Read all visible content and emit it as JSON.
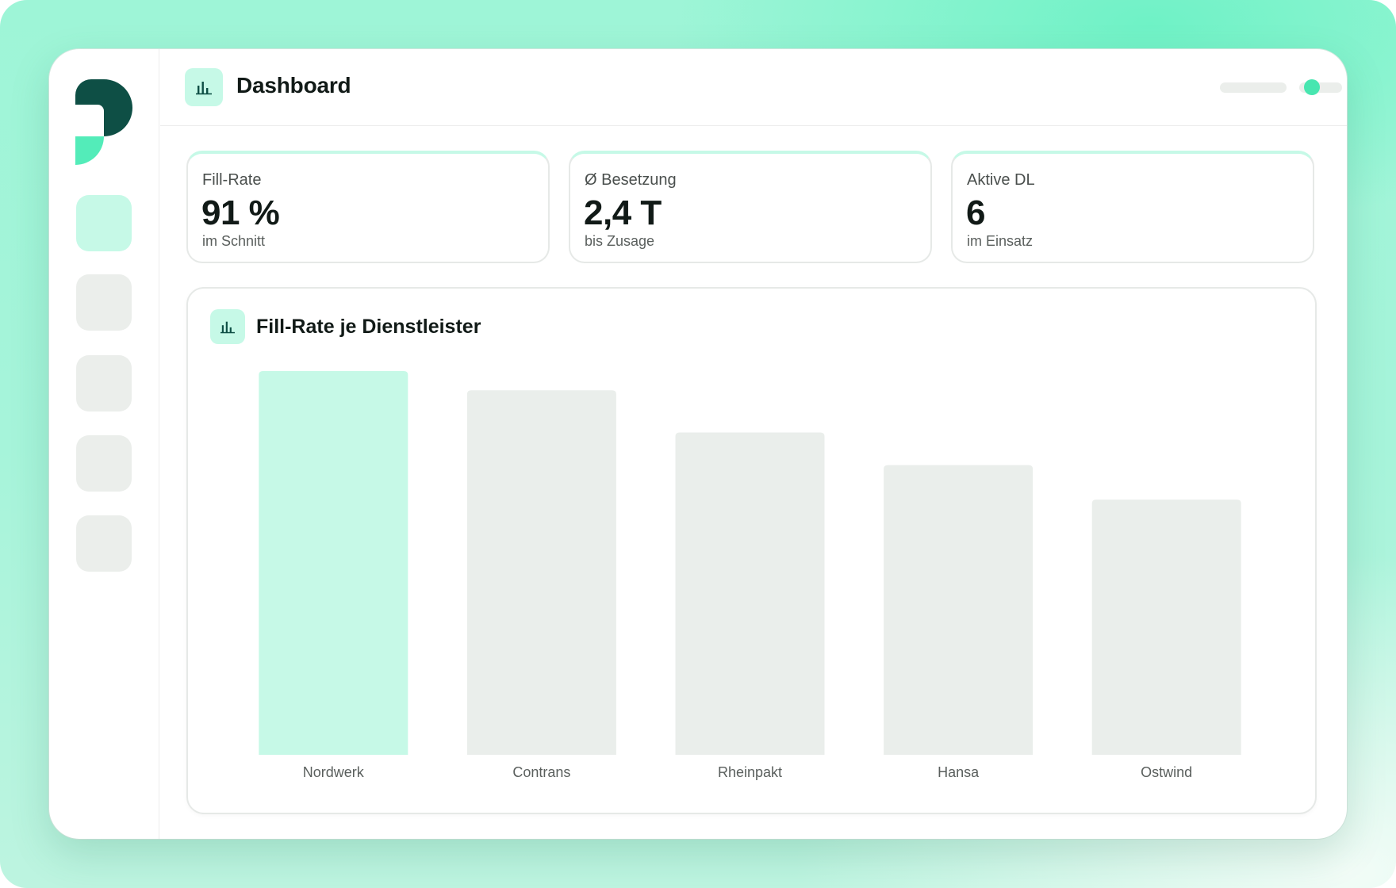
{
  "header": {
    "title": "Dashboard",
    "title_icon": "bar-chart-icon",
    "status_color": "#48e6b0"
  },
  "sidebar": {
    "logo": "brand-logo",
    "items": [
      {
        "id": "nav-1",
        "active": true
      },
      {
        "id": "nav-2",
        "active": false
      },
      {
        "id": "nav-3",
        "active": false
      },
      {
        "id": "nav-4",
        "active": false
      },
      {
        "id": "nav-5",
        "active": false
      }
    ]
  },
  "kpis": [
    {
      "label": "Fill-Rate",
      "value": "91 %",
      "sub": "im Schnitt"
    },
    {
      "label": "Ø Besetzung",
      "value": "2,4 T",
      "sub": "bis Zusage"
    },
    {
      "label": "Aktive DL",
      "value": "6",
      "sub": "im Einsatz"
    }
  ],
  "chart": {
    "title": "Fill-Rate je Dienstleister",
    "icon": "bar-chart-icon"
  },
  "chart_data": {
    "type": "bar",
    "title": "Fill-Rate je Dienstleister",
    "categories": [
      "Nordwerk",
      "Contrans",
      "Rheinpakt",
      "Hansa",
      "Ostwind"
    ],
    "values": [
      100,
      95,
      84,
      75.5,
      66.5
    ],
    "ylim": [
      0,
      100
    ],
    "grid": false,
    "highlight_index": 0,
    "colors": {
      "highlight": "#c6f9e7",
      "default": "#eaeeeb"
    }
  }
}
